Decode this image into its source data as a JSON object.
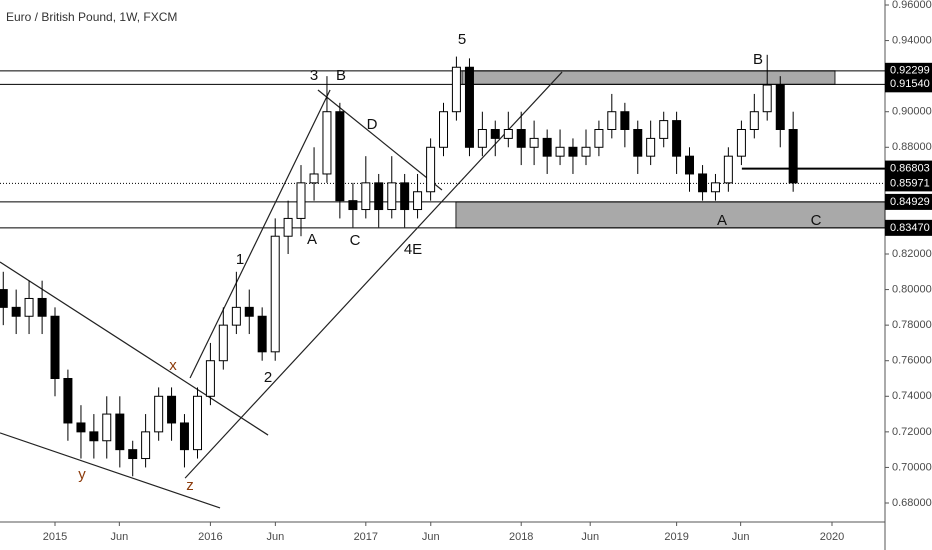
{
  "chart_data": {
    "type": "candlestick",
    "title": "Euro / British Pound, 1W, FXCM",
    "x": [
      2014.667,
      2014.75,
      2014.833,
      2014.917,
      2015,
      2015.083,
      2015.167,
      2015.25,
      2015.333,
      2015.417,
      2015.5,
      2015.583,
      2015.667,
      2015.75,
      2015.833,
      2015.917,
      2016,
      2016.083,
      2016.167,
      2016.25,
      2016.333,
      2016.417,
      2016.5,
      2016.583,
      2016.667,
      2016.75,
      2016.833,
      2016.917,
      2017,
      2017.083,
      2017.167,
      2017.25,
      2017.333,
      2017.417,
      2017.5,
      2017.583,
      2017.667,
      2017.75,
      2017.833,
      2017.917,
      2018,
      2018.083,
      2018.167,
      2018.25,
      2018.333,
      2018.417,
      2018.5,
      2018.583,
      2018.667,
      2018.75,
      2018.833,
      2018.917,
      2019,
      2019.083,
      2019.167,
      2019.25,
      2019.333,
      2019.417,
      2019.5,
      2019.583,
      2019.667,
      2019.75
    ],
    "open": [
      0.8,
      0.79,
      0.785,
      0.795,
      0.785,
      0.75,
      0.725,
      0.72,
      0.715,
      0.73,
      0.71,
      0.705,
      0.72,
      0.74,
      0.725,
      0.71,
      0.74,
      0.76,
      0.78,
      0.79,
      0.785,
      0.765,
      0.83,
      0.84,
      0.86,
      0.865,
      0.9,
      0.85,
      0.845,
      0.86,
      0.845,
      0.86,
      0.845,
      0.855,
      0.88,
      0.9,
      0.925,
      0.88,
      0.89,
      0.885,
      0.89,
      0.88,
      0.885,
      0.875,
      0.88,
      0.875,
      0.88,
      0.89,
      0.9,
      0.89,
      0.875,
      0.885,
      0.895,
      0.875,
      0.865,
      0.855,
      0.86,
      0.875,
      0.89,
      0.9,
      0.915,
      0.89
    ],
    "high": [
      0.81,
      0.8,
      0.805,
      0.805,
      0.79,
      0.755,
      0.735,
      0.73,
      0.74,
      0.74,
      0.715,
      0.73,
      0.745,
      0.745,
      0.73,
      0.745,
      0.77,
      0.79,
      0.81,
      0.8,
      0.79,
      0.84,
      0.85,
      0.87,
      0.88,
      0.92,
      0.905,
      0.86,
      0.875,
      0.865,
      0.875,
      0.865,
      0.865,
      0.885,
      0.905,
      0.931,
      0.93,
      0.9,
      0.895,
      0.9,
      0.9,
      0.895,
      0.89,
      0.89,
      0.885,
      0.89,
      0.895,
      0.91,
      0.905,
      0.895,
      0.895,
      0.9,
      0.9,
      0.88,
      0.87,
      0.865,
      0.88,
      0.895,
      0.91,
      0.932,
      0.92,
      0.9
    ],
    "low": [
      0.78,
      0.775,
      0.775,
      0.775,
      0.74,
      0.715,
      0.705,
      0.705,
      0.705,
      0.7,
      0.695,
      0.7,
      0.715,
      0.715,
      0.7,
      0.705,
      0.735,
      0.755,
      0.775,
      0.775,
      0.76,
      0.76,
      0.82,
      0.83,
      0.85,
      0.86,
      0.84,
      0.835,
      0.84,
      0.835,
      0.84,
      0.835,
      0.84,
      0.85,
      0.875,
      0.895,
      0.875,
      0.875,
      0.875,
      0.88,
      0.87,
      0.87,
      0.865,
      0.87,
      0.865,
      0.87,
      0.875,
      0.885,
      0.88,
      0.865,
      0.87,
      0.88,
      0.865,
      0.855,
      0.85,
      0.85,
      0.855,
      0.87,
      0.885,
      0.895,
      0.88,
      0.855
    ],
    "close": [
      0.79,
      0.785,
      0.795,
      0.785,
      0.75,
      0.725,
      0.72,
      0.715,
      0.73,
      0.71,
      0.705,
      0.72,
      0.74,
      0.725,
      0.71,
      0.74,
      0.76,
      0.78,
      0.79,
      0.785,
      0.765,
      0.83,
      0.84,
      0.86,
      0.865,
      0.9,
      0.85,
      0.845,
      0.86,
      0.845,
      0.86,
      0.845,
      0.855,
      0.88,
      0.9,
      0.925,
      0.88,
      0.89,
      0.885,
      0.89,
      0.88,
      0.885,
      0.875,
      0.88,
      0.875,
      0.88,
      0.89,
      0.9,
      0.89,
      0.875,
      0.885,
      0.895,
      0.875,
      0.865,
      0.855,
      0.86,
      0.875,
      0.89,
      0.9,
      0.915,
      0.89,
      0.86
    ],
    "up_color": "#ffffff",
    "down_color": "#000000",
    "xlim": [
      2014.646,
      2020.341
    ],
    "xticks": [
      {
        "value": 2015,
        "label": "2015"
      },
      {
        "value": 2015.414,
        "label": "Jun"
      },
      {
        "value": 2016,
        "label": "2016"
      },
      {
        "value": 2016.418,
        "label": "Jun"
      },
      {
        "value": 2017,
        "label": "2017"
      },
      {
        "value": 2017.418,
        "label": "Jun"
      },
      {
        "value": 2018,
        "label": "2018"
      },
      {
        "value": 2018.444,
        "label": "Jun"
      },
      {
        "value": 2019,
        "label": "2019"
      },
      {
        "value": 2019.412,
        "label": "Jun"
      },
      {
        "value": 2020,
        "label": "2020"
      }
    ],
    "ylim": [
      0.68,
      0.96
    ],
    "yticks": [
      {
        "value": 0.96,
        "label": "0.96000"
      },
      {
        "value": 0.94,
        "label": "0.94000"
      },
      {
        "value": 0.9,
        "label": "0.90000"
      },
      {
        "value": 0.88,
        "label": "0.88000"
      },
      {
        "value": 0.82,
        "label": "0.82000"
      },
      {
        "value": 0.8,
        "label": "0.80000"
      },
      {
        "value": 0.78,
        "label": "0.78000"
      },
      {
        "value": 0.76,
        "label": "0.76000"
      },
      {
        "value": 0.74,
        "label": "0.74000"
      },
      {
        "value": 0.72,
        "label": "0.72000"
      },
      {
        "value": 0.7,
        "label": "0.70000"
      },
      {
        "value": 0.68,
        "label": "0.68000"
      }
    ],
    "levels": [
      {
        "value": 0.92299,
        "label": "0.92299",
        "style": "solid"
      },
      {
        "value": 0.9154,
        "label": "0.91540",
        "style": "solid"
      },
      {
        "value": 0.86803,
        "label": "0.86803",
        "style": "solid",
        "from": 2019.42
      },
      {
        "value": 0.85971,
        "label": "0.85971",
        "style": "dotted"
      },
      {
        "value": 0.84929,
        "label": "0.84929",
        "style": "solid"
      },
      {
        "value": 0.8347,
        "label": "0.83470",
        "style": "solid"
      }
    ],
    "zones": [
      {
        "x": [
          2017.619,
          2020.019
        ],
        "y": [
          0.9154,
          0.92299
        ]
      },
      {
        "x": [
          2017.58,
          2020.341
        ],
        "y": [
          0.8347,
          0.84929
        ]
      }
    ],
    "trendlines": [
      {
        "x": [
          2014.646,
          2016.371
        ],
        "y": [
          0.8155,
          0.7182
        ]
      },
      {
        "x": [
          2014.646,
          2016.062
        ],
        "y": [
          0.7194,
          0.6772
        ]
      },
      {
        "x": [
          2015.837,
          2018.263
        ],
        "y": [
          0.694,
          0.9223
        ]
      },
      {
        "x": [
          2015.869,
          2016.77
        ],
        "y": [
          0.7503,
          0.9122
        ]
      },
      {
        "x": [
          2016.692,
          2017.49
        ],
        "y": [
          0.9122,
          0.856
        ]
      }
    ],
    "annotations": [
      "x",
      "y",
      "z",
      "1",
      "2",
      "3",
      "B",
      "A",
      "C",
      "D",
      "4E",
      "5",
      "B",
      "A",
      "C"
    ]
  }
}
